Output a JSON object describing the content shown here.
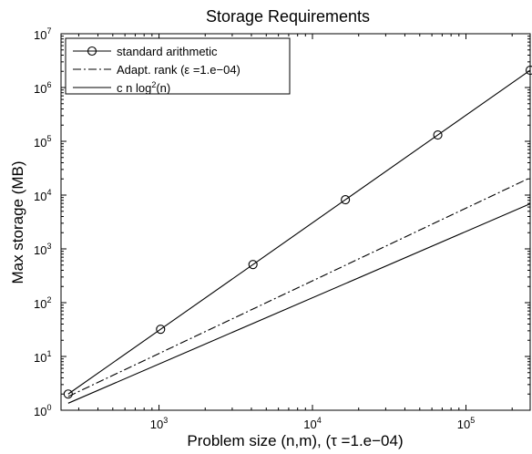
{
  "chart_data": {
    "type": "line",
    "title": "Storage Requirements",
    "xlabel": "Problem size (n,m), (τ =1.e−04)",
    "ylabel": "Max storage (MB)",
    "xscale": "log",
    "yscale": "log",
    "xlim": [
      230,
      262144
    ],
    "ylim": [
      1,
      10000000
    ],
    "x_ticks": [
      {
        "value": 1000,
        "base": "10",
        "exp": "3"
      },
      {
        "value": 10000,
        "base": "10",
        "exp": "4"
      },
      {
        "value": 100000,
        "base": "10",
        "exp": "5"
      }
    ],
    "y_ticks": [
      {
        "value": 1,
        "base": "10",
        "exp": "0"
      },
      {
        "value": 10,
        "base": "10",
        "exp": "1"
      },
      {
        "value": 100,
        "base": "10",
        "exp": "2"
      },
      {
        "value": 1000,
        "base": "10",
        "exp": "3"
      },
      {
        "value": 10000,
        "base": "10",
        "exp": "4"
      },
      {
        "value": 100000,
        "base": "10",
        "exp": "5"
      },
      {
        "value": 1000000,
        "base": "10",
        "exp": "6"
      },
      {
        "value": 10000000,
        "base": "10",
        "exp": "7"
      }
    ],
    "grid": false,
    "legend_position": "top-left",
    "series": [
      {
        "name": "standard arithmetic",
        "line_style": "solid",
        "marker": "circle",
        "color": "#000000",
        "x": [
          256,
          1024,
          4096,
          16384,
          65536,
          262144
        ],
        "y": [
          2,
          32,
          512,
          8192,
          131072,
          2097152
        ]
      },
      {
        "name": "Adapt. rank (ε =1.e−04)",
        "line_style": "dashdot",
        "marker": "none",
        "color": "#000000",
        "x": [
          256,
          262144
        ],
        "y": [
          1.8,
          21000
        ]
      },
      {
        "name_prefix": "c n log",
        "name_sup": "2",
        "name_suffix": "(n)",
        "line_style": "solid",
        "marker": "none",
        "color": "#000000",
        "x": [
          256,
          262144
        ],
        "y": [
          1.35,
          6900
        ]
      }
    ]
  }
}
